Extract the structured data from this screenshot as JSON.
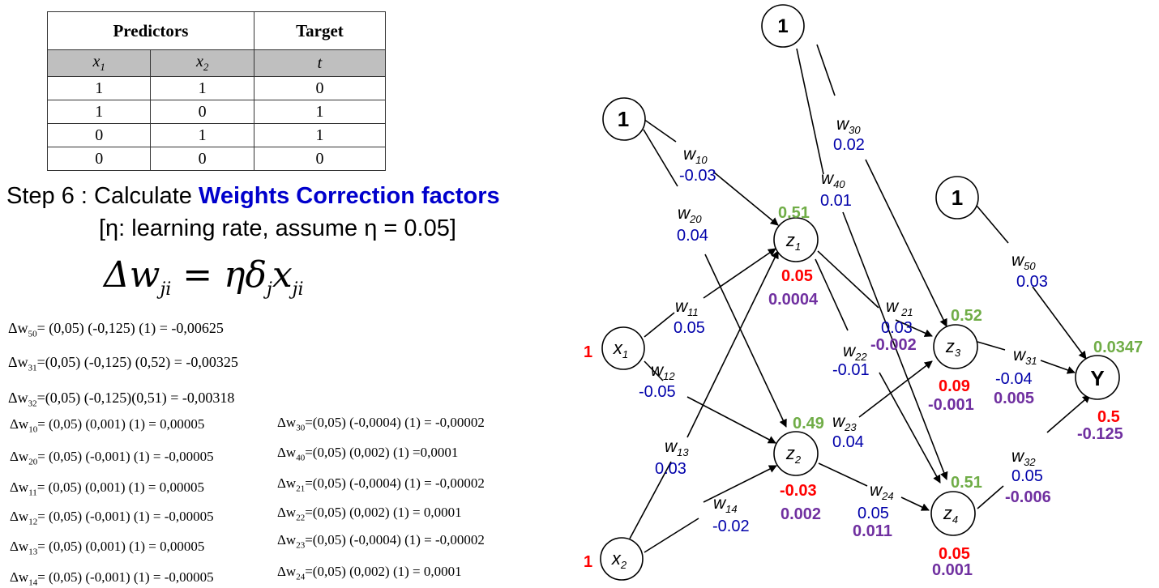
{
  "table": {
    "header_predictors": "Predictors",
    "header_target": "Target",
    "col_x1": "x",
    "col_x1_sub": "1",
    "col_x2": "x",
    "col_x2_sub": "2",
    "col_t": "t",
    "rows": [
      [
        "1",
        "1",
        "0"
      ],
      [
        "1",
        "0",
        "1"
      ],
      [
        "0",
        "1",
        "1"
      ],
      [
        "0",
        "0",
        "0"
      ]
    ]
  },
  "step": {
    "prefix": "Step 6 : Calculate ",
    "highlight": "Weights Correction factors",
    "note": "[η: learning rate, assume η = 0.05]"
  },
  "formula": {
    "lhs": "Δw",
    "lhs_sub": "ji",
    "rhs1": " = ηδ",
    "rhs1_sub": "j",
    "rhs2": "x",
    "rhs2_sub": "ji"
  },
  "calcs_left": [
    {
      "sub": "50",
      "expr": "= (0,05) (-0,125) (1) = -0,00625"
    },
    {
      "sub": "31",
      "expr": "=(0,05) (-0,125) (0,52) = -0,00325"
    },
    {
      "sub": "32",
      "expr": "=(0,05) (-0,125)(0,51) = -0,00318"
    },
    {
      "sub": "10",
      "expr": "= (0,05) (0,001) (1) = 0,00005"
    },
    {
      "sub": "20",
      "expr": "= (0,05) (-0,001) (1) = -0,00005"
    },
    {
      "sub": "11",
      "expr": "= (0,05) (0,001) (1) = 0,00005"
    },
    {
      "sub": "12",
      "expr": "= (0,05) (-0,001) (1) = -0,00005"
    },
    {
      "sub": "13",
      "expr": "= (0,05) (0,001) (1) = 0,00005"
    },
    {
      "sub": "14",
      "expr": "= (0,05) (-0,001) (1) = -0,00005"
    }
  ],
  "calcs_right": [
    {
      "sub": "30",
      "expr": "=(0,05) (-0,0004) (1) = -0,00002"
    },
    {
      "sub": "40",
      "expr": "=(0,05) (0,002) (1) =0,0001"
    },
    {
      "sub": "21",
      "expr": "=(0,05) (-0,0004) (1) = -0,00002"
    },
    {
      "sub": "22",
      "expr": "=(0,05) (0,002) (1) = 0,0001"
    },
    {
      "sub": "23",
      "expr": "=(0,05) (-0,0004) (1) = -0,00002"
    },
    {
      "sub": "24",
      "expr": "=(0,05) (0,002) (1) = 0,0001"
    }
  ],
  "calc_prefix": "Δw",
  "network": {
    "nodes": {
      "bias_top": "1",
      "bias_left": "1",
      "bias_right": "1",
      "x1": "x",
      "x1_sub": "1",
      "x2": "x",
      "x2_sub": "2",
      "z1": "z",
      "z1_sub": "1",
      "z2": "z",
      "z2_sub": "2",
      "z3": "z",
      "z3_sub": "3",
      "z4": "z",
      "z4_sub": "4",
      "y": "Y"
    },
    "input_x1": "1",
    "input_x2": "1",
    "weights": {
      "w10": {
        "label": "w",
        "sub": "10",
        "value": "-0.03"
      },
      "w20": {
        "label": "w",
        "sub": "20",
        "value": "0.04"
      },
      "w11": {
        "label": "w",
        "sub": "11",
        "value": "0.05"
      },
      "w12": {
        "label": "w",
        "sub": "12",
        "value": "-0.05"
      },
      "w13": {
        "label": "w",
        "sub": "13",
        "value": "0.03"
      },
      "w14": {
        "label": "w",
        "sub": "14",
        "value": "-0.02"
      },
      "w30": {
        "label": "w",
        "sub": "30",
        "value": "0.02"
      },
      "w40": {
        "label": "w",
        "sub": "40",
        "value": "0.01"
      },
      "w21": {
        "label": "w",
        "sub": "21",
        "value": "0.03"
      },
      "w22": {
        "label": "w",
        "sub": "22",
        "value": "-0.01"
      },
      "w23": {
        "label": "w",
        "sub": "23",
        "value": "0.04"
      },
      "w24": {
        "label": "w",
        "sub": "24",
        "value": "0.05"
      },
      "w50": {
        "label": "w",
        "sub": "50",
        "value": "0.03"
      },
      "w31": {
        "label": "w",
        "sub": "31",
        "value": "-0.04"
      },
      "w32": {
        "label": "w",
        "sub": "32",
        "value": "0.05"
      }
    },
    "node_values": {
      "z1": {
        "out": "0.51",
        "a": "0.05",
        "b": "0.0004"
      },
      "z2": {
        "out": "0.49",
        "a": "-0.03",
        "b": "0.002"
      },
      "z3": {
        "out": "0.52",
        "a": "0.09",
        "b": "-0.001"
      },
      "z4": {
        "out": "0.51",
        "a": "0.05",
        "b": "0.001"
      },
      "y": {
        "out": "0.0347",
        "a": "0.5",
        "b": "-0.125"
      }
    },
    "weight_corrections": {
      "w21": "-0.002",
      "w31": "0.005",
      "w24": "0.011",
      "w32": "-0.006"
    },
    "colors": {
      "output": "#70ad47",
      "net": "#ff0000",
      "delta": "#7030a0",
      "weight": "#0000aa"
    }
  }
}
